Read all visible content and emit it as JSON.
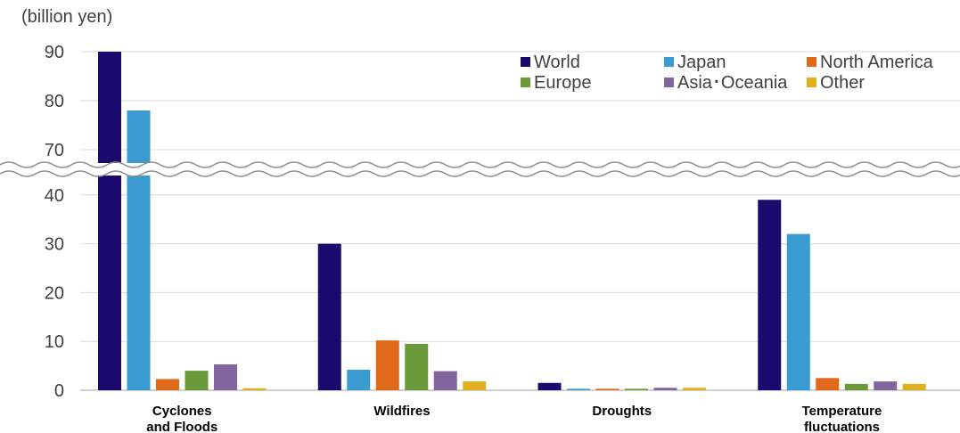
{
  "chart_data": {
    "type": "bar",
    "unit_label": "(billion yen)",
    "categories": [
      [
        "Cyclones",
        "and Floods"
      ],
      [
        "Wildfires"
      ],
      [
        "Droughts"
      ],
      [
        "Temperature",
        "fluctuations"
      ]
    ],
    "series": [
      {
        "name": "World",
        "color": "#1a0a6e",
        "values": [
          90,
          30,
          1.5,
          39
        ]
      },
      {
        "name": "Japan",
        "color": "#3a9bd0",
        "values": [
          78,
          4.2,
          0.3,
          32
        ]
      },
      {
        "name": "North America",
        "color": "#e06a1a",
        "values": [
          2.3,
          10.2,
          0.3,
          2.5
        ]
      },
      {
        "name": "Europe",
        "color": "#6a9a3a",
        "values": [
          4.0,
          9.5,
          0.3,
          1.3
        ]
      },
      {
        "name": "Asia･Oceania",
        "color": "#82659f",
        "values": [
          5.3,
          3.9,
          0.5,
          1.8
        ]
      },
      {
        "name": "Other",
        "color": "#e0b020",
        "values": [
          0.4,
          1.8,
          0.5,
          1.3
        ]
      }
    ],
    "y_ticks": [
      0,
      10,
      20,
      30,
      40,
      70,
      80,
      90
    ],
    "y_axis_break": {
      "from": 40,
      "to": 70
    },
    "ylim": [
      0,
      90
    ],
    "grid": true,
    "legend_position": "top-right"
  }
}
